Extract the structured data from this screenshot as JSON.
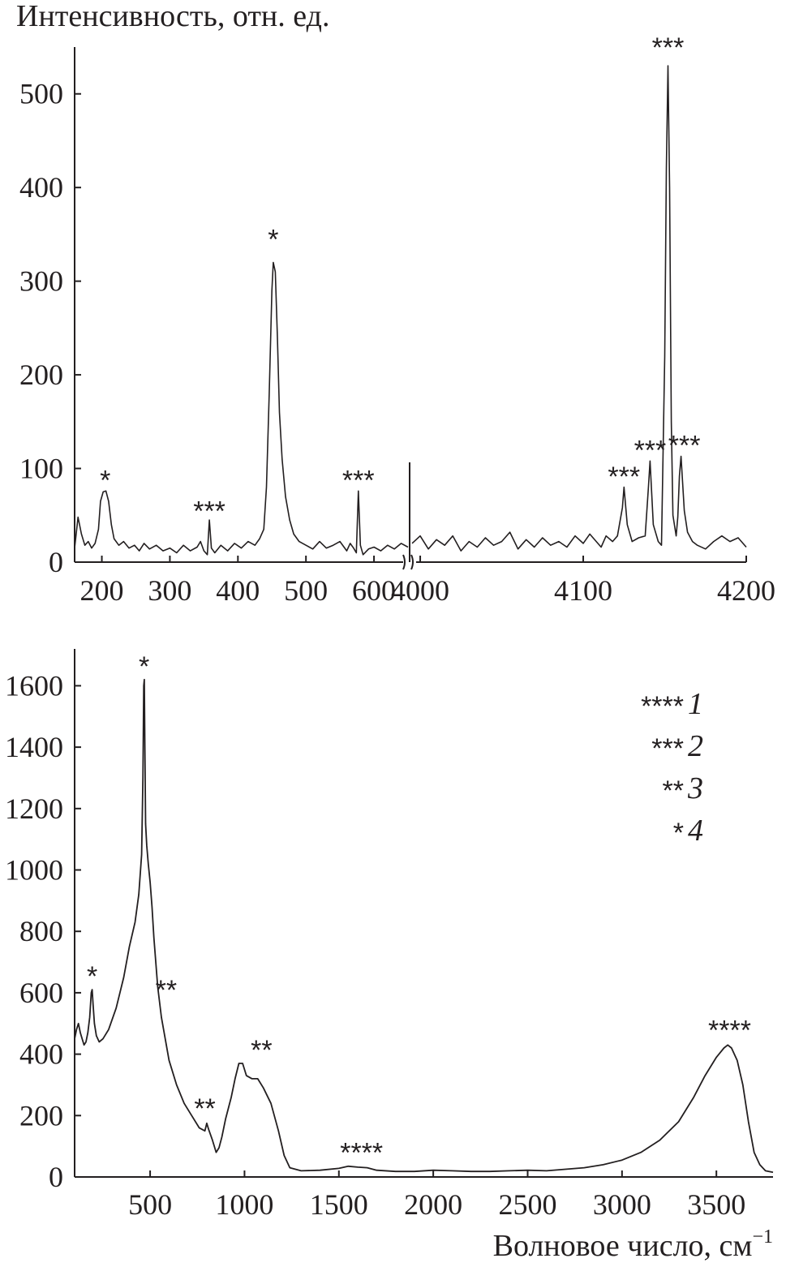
{
  "chart_data": [
    {
      "id": "top",
      "type": "line",
      "ylabel": "Интенсивность, отн. ед.",
      "ylim": [
        0,
        550
      ],
      "yticks": [
        0,
        100,
        200,
        300,
        400,
        500
      ],
      "broken_x_axis": true,
      "x_segments": [
        {
          "range": [
            160,
            650
          ],
          "ticks": [
            200,
            300,
            400,
            500,
            600
          ]
        },
        {
          "range": [
            3995,
            4200
          ],
          "ticks": [
            4000,
            4100,
            4200
          ]
        }
      ],
      "tick_labels": [
        "200",
        "300",
        "400",
        "500",
        "600",
        "4000",
        "4100",
        "4200"
      ],
      "series": [
        {
          "segment": 0,
          "points": [
            [
              160,
              15
            ],
            [
              165,
              48
            ],
            [
              170,
              30
            ],
            [
              175,
              18
            ],
            [
              180,
              22
            ],
            [
              185,
              15
            ],
            [
              190,
              20
            ],
            [
              195,
              35
            ],
            [
              198,
              65
            ],
            [
              202,
              75
            ],
            [
              206,
              76
            ],
            [
              210,
              65
            ],
            [
              214,
              40
            ],
            [
              218,
              25
            ],
            [
              225,
              18
            ],
            [
              232,
              22
            ],
            [
              240,
              15
            ],
            [
              248,
              18
            ],
            [
              255,
              12
            ],
            [
              262,
              20
            ],
            [
              270,
              14
            ],
            [
              280,
              18
            ],
            [
              290,
              12
            ],
            [
              300,
              15
            ],
            [
              310,
              10
            ],
            [
              320,
              18
            ],
            [
              330,
              12
            ],
            [
              340,
              16
            ],
            [
              345,
              22
            ],
            [
              350,
              12
            ],
            [
              355,
              8
            ],
            [
              358,
              45
            ],
            [
              361,
              15
            ],
            [
              366,
              10
            ],
            [
              375,
              18
            ],
            [
              385,
              12
            ],
            [
              395,
              20
            ],
            [
              405,
              15
            ],
            [
              415,
              22
            ],
            [
              425,
              18
            ],
            [
              432,
              25
            ],
            [
              438,
              35
            ],
            [
              442,
              80
            ],
            [
              446,
              180
            ],
            [
              450,
              290
            ],
            [
              452,
              320
            ],
            [
              455,
              310
            ],
            [
              458,
              240
            ],
            [
              461,
              160
            ],
            [
              465,
              110
            ],
            [
              470,
              70
            ],
            [
              476,
              45
            ],
            [
              482,
              30
            ],
            [
              490,
              22
            ],
            [
              500,
              18
            ],
            [
              510,
              14
            ],
            [
              520,
              22
            ],
            [
              530,
              15
            ],
            [
              540,
              18
            ],
            [
              550,
              22
            ],
            [
              560,
              12
            ],
            [
              565,
              20
            ],
            [
              570,
              15
            ],
            [
              574,
              10
            ],
            [
              577,
              76
            ],
            [
              580,
              18
            ],
            [
              584,
              8
            ],
            [
              592,
              14
            ],
            [
              600,
              16
            ],
            [
              610,
              12
            ],
            [
              620,
              18
            ],
            [
              630,
              14
            ],
            [
              640,
              20
            ],
            [
              650,
              16
            ]
          ]
        },
        {
          "segment": 1,
          "points": [
            [
              3995,
              20
            ],
            [
              4000,
              28
            ],
            [
              4005,
              14
            ],
            [
              4010,
              24
            ],
            [
              4015,
              18
            ],
            [
              4020,
              28
            ],
            [
              4025,
              12
            ],
            [
              4030,
              22
            ],
            [
              4035,
              16
            ],
            [
              4040,
              26
            ],
            [
              4045,
              18
            ],
            [
              4050,
              22
            ],
            [
              4055,
              32
            ],
            [
              4060,
              14
            ],
            [
              4065,
              24
            ],
            [
              4070,
              16
            ],
            [
              4075,
              26
            ],
            [
              4080,
              18
            ],
            [
              4085,
              22
            ],
            [
              4090,
              16
            ],
            [
              4095,
              28
            ],
            [
              4100,
              20
            ],
            [
              4104,
              30
            ],
            [
              4108,
              22
            ],
            [
              4111,
              16
            ],
            [
              4114,
              28
            ],
            [
              4118,
              22
            ],
            [
              4121,
              28
            ],
            [
              4124,
              58
            ],
            [
              4125,
              80
            ],
            [
              4127,
              40
            ],
            [
              4130,
              22
            ],
            [
              4134,
              26
            ],
            [
              4138,
              28
            ],
            [
              4140,
              80
            ],
            [
              4141,
              108
            ],
            [
              4143,
              40
            ],
            [
              4146,
              22
            ],
            [
              4148,
              18
            ],
            [
              4150,
              220
            ],
            [
              4151,
              420
            ],
            [
              4152,
              530
            ],
            [
              4153,
              400
            ],
            [
              4154,
              150
            ],
            [
              4155,
              50
            ],
            [
              4157,
              28
            ],
            [
              4158,
              48
            ],
            [
              4159,
              92
            ],
            [
              4160,
              113
            ],
            [
              4162,
              55
            ],
            [
              4164,
              32
            ],
            [
              4167,
              22
            ],
            [
              4170,
              18
            ],
            [
              4175,
              14
            ],
            [
              4180,
              22
            ],
            [
              4185,
              28
            ],
            [
              4190,
              22
            ],
            [
              4195,
              26
            ],
            [
              4200,
              16
            ]
          ]
        }
      ],
      "annotations": [
        {
          "text": "*",
          "x": 205,
          "y": 88,
          "segment": 0
        },
        {
          "text": "***",
          "x": 358,
          "y": 55,
          "segment": 0
        },
        {
          "text": "*",
          "x": 452,
          "y": 345,
          "segment": 0
        },
        {
          "text": "***",
          "x": 577,
          "y": 88,
          "segment": 0
        },
        {
          "text": "***",
          "x": 4125,
          "y": 92,
          "segment": 1
        },
        {
          "text": "***",
          "x": 4141,
          "y": 120,
          "segment": 1
        },
        {
          "text": "***",
          "x": 4152,
          "y": 550,
          "segment": 1
        },
        {
          "text": "***",
          "x": 4162,
          "y": 125,
          "segment": 1
        }
      ]
    },
    {
      "id": "bottom",
      "type": "line",
      "xlabel": "Волновое число, см",
      "xlabel_superscript": "−1",
      "xlim": [
        100,
        3800
      ],
      "ylim": [
        0,
        1720
      ],
      "xticks": [
        500,
        1000,
        1500,
        2000,
        2500,
        3000,
        3500
      ],
      "yticks": [
        0,
        200,
        400,
        600,
        800,
        1000,
        1200,
        1400,
        1600
      ],
      "points": [
        [
          100,
          450
        ],
        [
          110,
          480
        ],
        [
          120,
          500
        ],
        [
          130,
          470
        ],
        [
          140,
          450
        ],
        [
          150,
          430
        ],
        [
          160,
          440
        ],
        [
          170,
          470
        ],
        [
          180,
          520
        ],
        [
          188,
          600
        ],
        [
          193,
          610
        ],
        [
          198,
          560
        ],
        [
          205,
          500
        ],
        [
          215,
          460
        ],
        [
          230,
          440
        ],
        [
          250,
          450
        ],
        [
          280,
          480
        ],
        [
          320,
          550
        ],
        [
          360,
          650
        ],
        [
          390,
          750
        ],
        [
          420,
          830
        ],
        [
          440,
          920
        ],
        [
          455,
          1050
        ],
        [
          462,
          1300
        ],
        [
          466,
          1600
        ],
        [
          469,
          1620
        ],
        [
          472,
          1400
        ],
        [
          476,
          1150
        ],
        [
          482,
          1080
        ],
        [
          490,
          1020
        ],
        [
          500,
          960
        ],
        [
          510,
          880
        ],
        [
          520,
          780
        ],
        [
          540,
          620
        ],
        [
          560,
          520
        ],
        [
          580,
          450
        ],
        [
          600,
          380
        ],
        [
          640,
          300
        ],
        [
          680,
          240
        ],
        [
          720,
          200
        ],
        [
          760,
          160
        ],
        [
          790,
          150
        ],
        [
          800,
          175
        ],
        [
          810,
          155
        ],
        [
          830,
          120
        ],
        [
          850,
          80
        ],
        [
          865,
          95
        ],
        [
          880,
          130
        ],
        [
          900,
          190
        ],
        [
          930,
          260
        ],
        [
          950,
          320
        ],
        [
          970,
          370
        ],
        [
          990,
          370
        ],
        [
          1010,
          330
        ],
        [
          1040,
          320
        ],
        [
          1070,
          320
        ],
        [
          1100,
          290
        ],
        [
          1140,
          240
        ],
        [
          1180,
          150
        ],
        [
          1210,
          70
        ],
        [
          1240,
          30
        ],
        [
          1300,
          20
        ],
        [
          1400,
          22
        ],
        [
          1500,
          28
        ],
        [
          1550,
          35
        ],
        [
          1600,
          32
        ],
        [
          1650,
          30
        ],
        [
          1700,
          22
        ],
        [
          1800,
          18
        ],
        [
          1900,
          18
        ],
        [
          2000,
          22
        ],
        [
          2100,
          20
        ],
        [
          2200,
          18
        ],
        [
          2300,
          18
        ],
        [
          2400,
          20
        ],
        [
          2500,
          22
        ],
        [
          2600,
          20
        ],
        [
          2700,
          25
        ],
        [
          2800,
          30
        ],
        [
          2900,
          40
        ],
        [
          3000,
          55
        ],
        [
          3100,
          80
        ],
        [
          3200,
          120
        ],
        [
          3300,
          180
        ],
        [
          3380,
          260
        ],
        [
          3440,
          330
        ],
        [
          3500,
          390
        ],
        [
          3540,
          420
        ],
        [
          3560,
          430
        ],
        [
          3580,
          420
        ],
        [
          3610,
          380
        ],
        [
          3640,
          300
        ],
        [
          3670,
          180
        ],
        [
          3700,
          80
        ],
        [
          3730,
          40
        ],
        [
          3760,
          20
        ],
        [
          3800,
          15
        ]
      ],
      "annotations": [
        {
          "text": "*",
          "x": 193,
          "y": 655
        },
        {
          "text": "*",
          "x": 468,
          "y": 1665
        },
        {
          "text": "**",
          "x": 585,
          "y": 610
        },
        {
          "text": "**",
          "x": 790,
          "y": 225
        },
        {
          "text": "**",
          "x": 1090,
          "y": 415
        },
        {
          "text": "****",
          "x": 1620,
          "y": 80
        },
        {
          "text": "****",
          "x": 3570,
          "y": 480
        }
      ],
      "legend": [
        {
          "marker": "****",
          "label": "1"
        },
        {
          "marker": "***",
          "label": "2"
        },
        {
          "marker": "**",
          "label": "3"
        },
        {
          "marker": "*",
          "label": "4"
        }
      ]
    }
  ]
}
